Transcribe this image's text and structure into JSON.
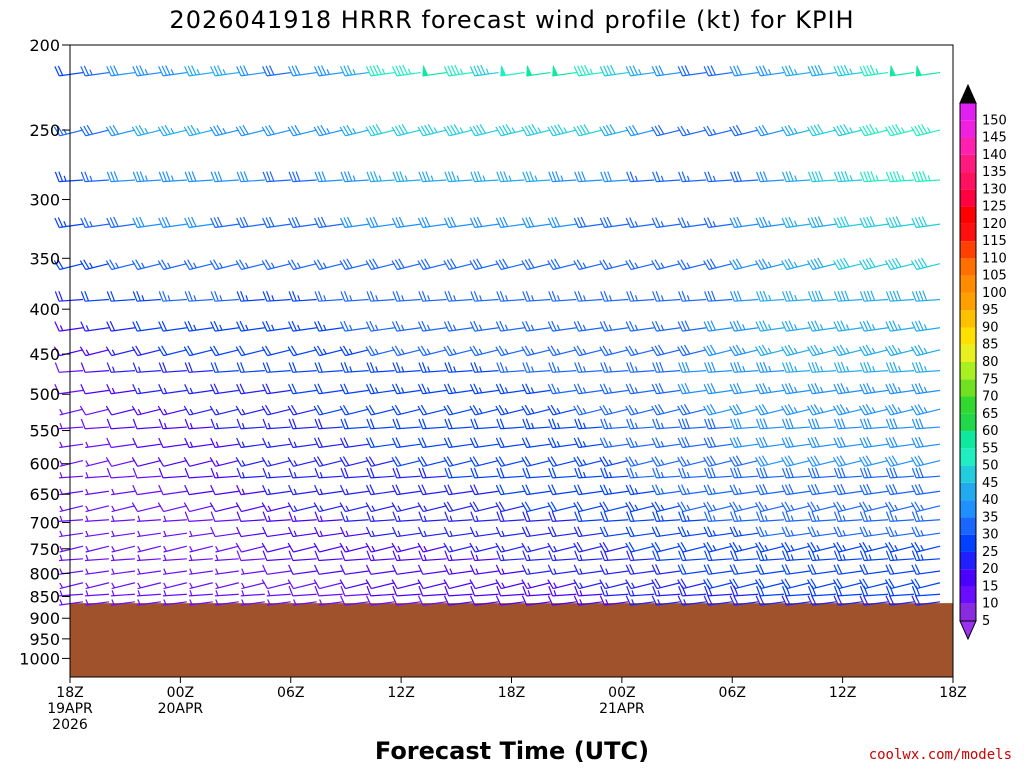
{
  "chart_data": {
    "type": "wind-barb-time-height",
    "title": "2026041918 HRRR forecast wind profile (kt) for KPIH",
    "xlabel": "Forecast Time (UTC)",
    "credit": "coolwx.com/models",
    "y_axis": {
      "scale": "log-pressure",
      "range_hpa": [
        1050,
        200
      ],
      "ticks": [
        "200",
        "250",
        "300",
        "350",
        "400",
        "450",
        "500",
        "550",
        "600",
        "650",
        "700",
        "750",
        "800",
        "850",
        "900",
        "950",
        "1000"
      ]
    },
    "x_axis": {
      "range_hours": [
        0,
        48
      ],
      "ticks": [
        {
          "hour": 0,
          "lines": [
            "18Z",
            "19APR",
            "2026"
          ]
        },
        {
          "hour": 6,
          "lines": [
            "00Z",
            "20APR"
          ]
        },
        {
          "hour": 12,
          "lines": [
            "06Z"
          ]
        },
        {
          "hour": 18,
          "lines": [
            "12Z"
          ]
        },
        {
          "hour": 24,
          "lines": [
            "18Z"
          ]
        },
        {
          "hour": 30,
          "lines": [
            "00Z",
            "21APR"
          ]
        },
        {
          "hour": 36,
          "lines": [
            "06Z"
          ]
        },
        {
          "hour": 42,
          "lines": [
            "12Z"
          ]
        },
        {
          "hour": 48,
          "lines": [
            "18Z"
          ]
        }
      ]
    },
    "surface_pressure_hpa": 865,
    "surface_color": "#a0522d",
    "colorbar": {
      "ticks": [
        "5",
        "10",
        "15",
        "20",
        "25",
        "30",
        "35",
        "40",
        "45",
        "50",
        "55",
        "60",
        "65",
        "70",
        "75",
        "80",
        "85",
        "90",
        "95",
        "100",
        "105",
        "110",
        "115",
        "120",
        "125",
        "130",
        "135",
        "140",
        "145",
        "150"
      ],
      "colors": [
        "#8a2be2",
        "#6a0dff",
        "#4b00ff",
        "#1f1fff",
        "#0040ff",
        "#1a66ff",
        "#1e90ff",
        "#22aaee",
        "#22ccdd",
        "#20eec0",
        "#10e8a0",
        "#20d84a",
        "#30d830",
        "#70e020",
        "#a8f020",
        "#e8f020",
        "#ffe000",
        "#ffc000",
        "#ff9f00",
        "#ff8c00",
        "#ff7000",
        "#ff4000",
        "#ff1010",
        "#ff0000",
        "#ff0040",
        "#ff1060",
        "#ff1a80",
        "#ff20b0",
        "#f020e0",
        "#e020f0"
      ],
      "top_arrow_color": "#000000",
      "bottom_arrow_color": "#9a30f0"
    },
    "series": [
      {
        "pressure": 215,
        "speed": [
          22,
          26,
          30,
          33,
          33,
          35,
          35,
          32,
          28,
          30,
          34,
          36,
          45,
          47,
          50,
          47,
          43,
          48,
          52,
          51,
          46,
          40,
          35,
          30,
          28,
          28,
          30,
          33,
          35,
          39,
          43,
          47,
          50,
          50
        ]
      },
      {
        "pressure": 250,
        "speed": [
          25,
          28,
          32,
          35,
          36,
          35,
          34,
          32,
          30,
          30,
          34,
          36,
          40,
          42,
          44,
          43,
          42,
          43,
          44,
          44,
          42,
          38,
          32,
          28,
          26,
          26,
          28,
          32,
          36,
          40,
          44,
          45,
          47,
          47
        ]
      },
      {
        "pressure": 285,
        "speed": [
          24,
          27,
          30,
          33,
          33,
          32,
          31,
          30,
          29,
          29,
          31,
          33,
          35,
          36,
          37,
          37,
          37,
          37,
          36,
          34,
          32,
          30,
          27,
          25,
          25,
          26,
          28,
          32,
          36,
          40,
          44,
          45,
          45,
          45
        ]
      },
      {
        "pressure": 320,
        "speed": [
          23,
          25,
          28,
          30,
          30,
          30,
          29,
          28,
          28,
          28,
          29,
          30,
          31,
          32,
          32,
          32,
          32,
          32,
          31,
          30,
          29,
          28,
          26,
          25,
          25,
          27,
          30,
          33,
          36,
          39,
          42,
          42,
          42,
          42
        ]
      },
      {
        "pressure": 355,
        "speed": [
          21,
          23,
          25,
          27,
          27,
          27,
          26,
          26,
          26,
          26,
          27,
          28,
          29,
          29,
          29,
          29,
          29,
          29,
          29,
          28,
          27,
          26,
          25,
          25,
          26,
          28,
          31,
          34,
          37,
          39,
          40,
          40,
          40,
          40
        ]
      },
      {
        "pressure": 390,
        "speed": [
          18,
          20,
          22,
          24,
          25,
          25,
          25,
          24,
          24,
          24,
          25,
          26,
          27,
          27,
          27,
          27,
          27,
          27,
          27,
          27,
          26,
          26,
          25,
          26,
          27,
          29,
          32,
          35,
          37,
          38,
          38,
          38,
          38,
          38
        ]
      },
      {
        "pressure": 420,
        "speed": [
          14,
          16,
          19,
          21,
          22,
          23,
          23,
          23,
          23,
          23,
          24,
          25,
          26,
          26,
          26,
          26,
          26,
          26,
          26,
          26,
          26,
          26,
          26,
          27,
          28,
          30,
          33,
          35,
          37,
          37,
          37,
          37,
          37,
          37
        ]
      },
      {
        "pressure": 445,
        "speed": [
          11,
          14,
          17,
          19,
          20,
          21,
          22,
          22,
          22,
          22,
          23,
          24,
          25,
          25,
          25,
          25,
          25,
          25,
          25,
          25,
          26,
          26,
          27,
          28,
          29,
          31,
          33,
          35,
          36,
          36,
          36,
          36,
          36,
          36
        ]
      },
      {
        "pressure": 470,
        "speed": [
          9,
          12,
          15,
          17,
          18,
          19,
          20,
          21,
          21,
          21,
          22,
          23,
          24,
          24,
          24,
          24,
          24,
          25,
          25,
          25,
          26,
          26,
          27,
          28,
          30,
          32,
          33,
          34,
          35,
          35,
          35,
          35,
          35,
          35
        ]
      },
      {
        "pressure": 495,
        "speed": [
          8,
          10,
          13,
          15,
          16,
          17,
          18,
          19,
          19,
          20,
          21,
          22,
          23,
          23,
          23,
          23,
          24,
          24,
          24,
          25,
          25,
          26,
          27,
          28,
          30,
          31,
          32,
          33,
          34,
          34,
          34,
          34,
          34,
          34
        ]
      },
      {
        "pressure": 520,
        "speed": [
          7,
          9,
          11,
          13,
          14,
          15,
          16,
          17,
          18,
          19,
          20,
          21,
          22,
          22,
          22,
          22,
          23,
          23,
          23,
          24,
          25,
          26,
          27,
          28,
          29,
          30,
          31,
          32,
          33,
          33,
          33,
          33,
          33,
          33
        ]
      },
      {
        "pressure": 545,
        "speed": [
          6,
          8,
          10,
          12,
          13,
          14,
          15,
          16,
          17,
          18,
          19,
          20,
          21,
          21,
          21,
          21,
          22,
          22,
          23,
          23,
          24,
          25,
          26,
          27,
          28,
          29,
          30,
          31,
          32,
          32,
          32,
          32,
          32,
          32
        ]
      },
      {
        "pressure": 570,
        "speed": [
          6,
          7,
          9,
          11,
          12,
          13,
          14,
          15,
          16,
          17,
          18,
          19,
          20,
          20,
          20,
          21,
          21,
          22,
          22,
          23,
          24,
          25,
          26,
          27,
          28,
          29,
          30,
          30,
          31,
          31,
          31,
          31,
          31,
          31
        ]
      },
      {
        "pressure": 595,
        "speed": [
          6,
          7,
          8,
          10,
          11,
          12,
          14,
          15,
          16,
          17,
          18,
          19,
          19,
          20,
          20,
          20,
          21,
          21,
          22,
          22,
          23,
          24,
          25,
          26,
          27,
          28,
          29,
          30,
          30,
          30,
          30,
          30,
          30,
          30
        ]
      },
      {
        "pressure": 620,
        "speed": [
          6,
          7,
          8,
          9,
          10,
          12,
          13,
          15,
          16,
          17,
          17,
          18,
          19,
          19,
          19,
          20,
          20,
          21,
          21,
          22,
          23,
          24,
          25,
          26,
          27,
          28,
          28,
          29,
          29,
          29,
          29,
          29,
          29,
          29
        ]
      },
      {
        "pressure": 645,
        "speed": [
          6,
          6,
          7,
          8,
          9,
          11,
          12,
          14,
          15,
          16,
          16,
          17,
          18,
          18,
          18,
          19,
          19,
          20,
          21,
          21,
          22,
          23,
          24,
          25,
          26,
          27,
          27,
          28,
          28,
          28,
          28,
          28,
          28,
          28
        ]
      },
      {
        "pressure": 670,
        "speed": [
          5,
          6,
          7,
          8,
          8,
          9,
          10,
          12,
          14,
          15,
          15,
          16,
          17,
          17,
          17,
          18,
          18,
          19,
          20,
          20,
          21,
          22,
          23,
          24,
          25,
          26,
          26,
          27,
          27,
          27,
          27,
          27,
          27,
          27
        ]
      },
      {
        "pressure": 695,
        "speed": [
          5,
          5,
          6,
          7,
          7,
          8,
          9,
          11,
          13,
          14,
          14,
          15,
          16,
          16,
          16,
          17,
          17,
          18,
          19,
          19,
          20,
          21,
          22,
          23,
          24,
          25,
          25,
          26,
          26,
          26,
          26,
          26,
          26,
          26
        ]
      },
      {
        "pressure": 720,
        "speed": [
          5,
          5,
          5,
          6,
          6,
          7,
          8,
          10,
          12,
          13,
          13,
          14,
          15,
          15,
          15,
          16,
          16,
          17,
          18,
          18,
          19,
          20,
          21,
          22,
          23,
          24,
          24,
          25,
          25,
          25,
          25,
          25,
          25,
          25
        ]
      },
      {
        "pressure": 745,
        "speed": [
          5,
          5,
          5,
          5,
          6,
          6,
          7,
          9,
          11,
          12,
          12,
          13,
          14,
          14,
          14,
          15,
          15,
          16,
          17,
          17,
          18,
          19,
          20,
          21,
          22,
          23,
          23,
          24,
          24,
          24,
          24,
          24,
          24,
          24
        ]
      },
      {
        "pressure": 770,
        "speed": [
          5,
          5,
          5,
          5,
          5,
          6,
          7,
          8,
          10,
          11,
          11,
          12,
          13,
          13,
          13,
          14,
          14,
          15,
          16,
          16,
          17,
          18,
          19,
          20,
          21,
          22,
          22,
          23,
          23,
          23,
          23,
          23,
          23,
          23
        ]
      },
      {
        "pressure": 795,
        "speed": [
          5,
          5,
          5,
          5,
          5,
          5,
          6,
          7,
          9,
          10,
          10,
          11,
          12,
          12,
          12,
          13,
          13,
          14,
          15,
          15,
          16,
          17,
          18,
          19,
          20,
          21,
          21,
          22,
          22,
          22,
          22,
          22,
          22,
          22
        ]
      },
      {
        "pressure": 820,
        "speed": [
          5,
          5,
          5,
          5,
          5,
          5,
          6,
          7,
          8,
          9,
          9,
          10,
          11,
          11,
          11,
          12,
          12,
          13,
          14,
          14,
          15,
          16,
          17,
          18,
          19,
          20,
          20,
          21,
          21,
          21,
          21,
          21,
          21,
          21
        ]
      },
      {
        "pressure": 845,
        "speed": [
          5,
          5,
          5,
          5,
          5,
          5,
          5,
          6,
          7,
          8,
          8,
          9,
          10,
          10,
          10,
          11,
          11,
          12,
          13,
          13,
          14,
          15,
          16,
          17,
          18,
          19,
          19,
          20,
          20,
          20,
          20,
          20,
          20,
          20
        ]
      },
      {
        "pressure": 862,
        "speed": [
          5,
          5,
          5,
          5,
          5,
          5,
          5,
          5,
          6,
          7,
          7,
          8,
          9,
          9,
          9,
          10,
          10,
          11,
          12,
          12,
          13,
          14,
          15,
          16,
          17,
          18,
          18,
          19,
          19,
          19,
          19,
          19,
          19,
          19
        ]
      }
    ]
  }
}
